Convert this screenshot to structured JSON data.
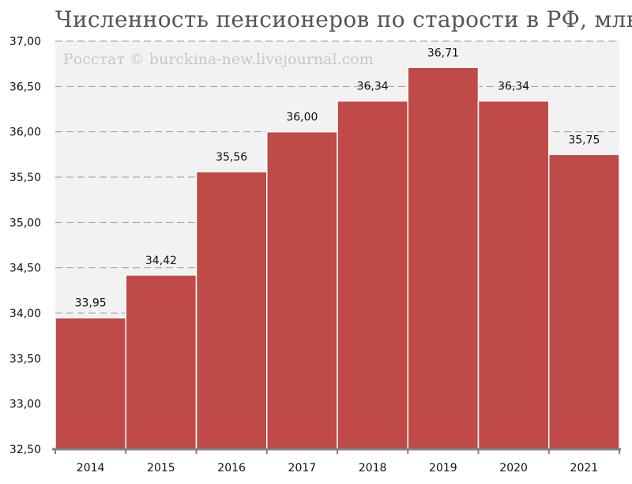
{
  "chart_data": {
    "type": "bar",
    "title": "Численность пенсионеров по старости в РФ, млн.",
    "watermark": "Росстат © burckina-new.livejournal.com",
    "categories": [
      "2014",
      "2015",
      "2016",
      "2017",
      "2018",
      "2019",
      "2020",
      "2021"
    ],
    "values": [
      33.95,
      34.42,
      35.56,
      36.0,
      36.34,
      36.71,
      36.34,
      35.75
    ],
    "value_labels": [
      "33,95",
      "34,42",
      "35,56",
      "36,00",
      "36,34",
      "36,71",
      "36,34",
      "35,75"
    ],
    "ylim": [
      32.5,
      37.0
    ],
    "yticks": [
      "32,50",
      "33,00",
      "33,50",
      "34,00",
      "34,50",
      "35,00",
      "35,50",
      "36,00",
      "36,50",
      "37,00"
    ],
    "ytick_values": [
      32.5,
      33.0,
      33.5,
      34.0,
      34.5,
      35.0,
      35.5,
      36.0,
      36.5,
      37.0
    ],
    "xlabel": "",
    "ylabel": "",
    "grid": true,
    "colors": {
      "bar": "#bf4a48",
      "plot_bg": "#f2f2f2",
      "grid": "#9a9a9a",
      "axis": "#808080"
    }
  }
}
